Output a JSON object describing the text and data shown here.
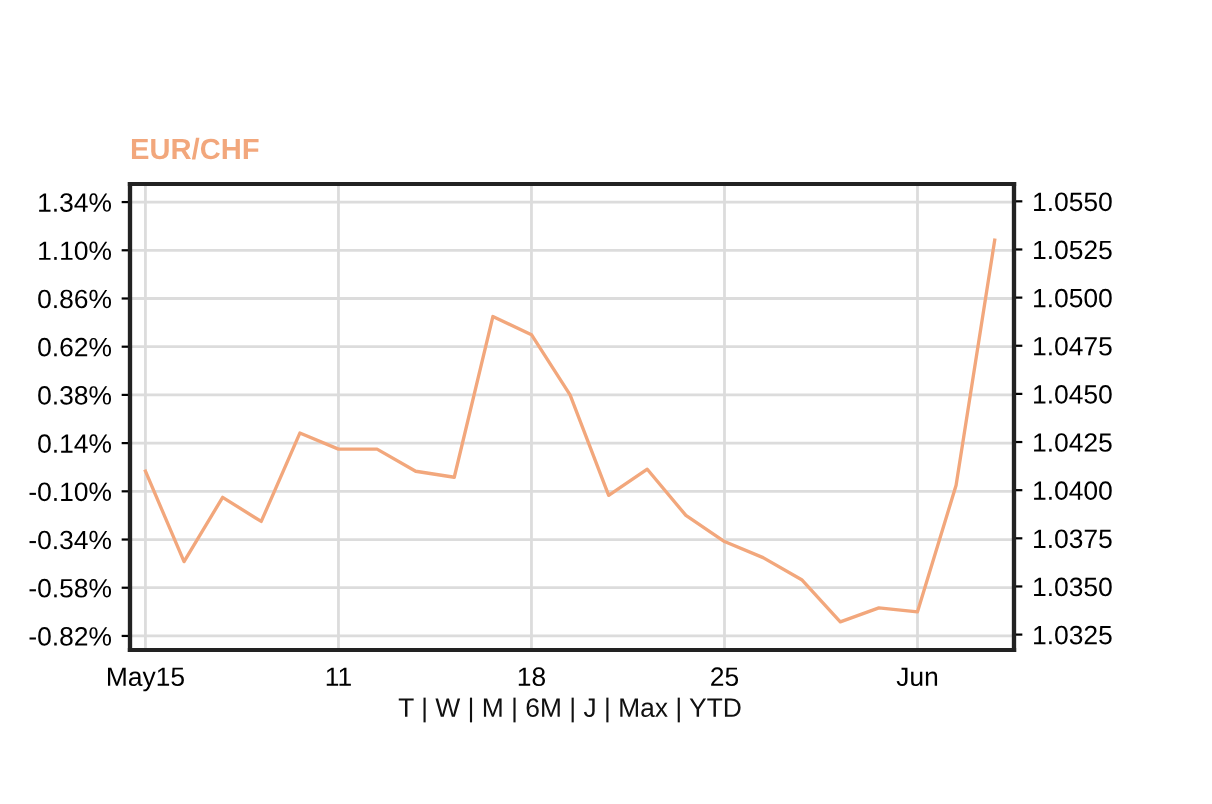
{
  "chart_data": {
    "type": "line",
    "title": "EUR/CHF",
    "categories": [
      "May15",
      null,
      null,
      null,
      null,
      "11",
      null,
      null,
      null,
      null,
      "18",
      null,
      null,
      null,
      null,
      "25",
      null,
      null,
      null,
      null,
      "Jun",
      null,
      null
    ],
    "series": [
      {
        "color": "#f2a77c",
        "values": [
          0.0,
          -0.45,
          -0.13,
          -0.25,
          0.19,
          0.11,
          0.11,
          0.0,
          -0.03,
          0.77,
          0.68,
          0.38,
          -0.12,
          0.01,
          -0.22,
          -0.35,
          -0.43,
          -0.54,
          -0.75,
          -0.68,
          -0.7,
          -0.07,
          1.15
        ]
      }
    ],
    "ylim": [
      -0.89,
      1.43
    ],
    "yticks": [
      {
        "value": 1.34,
        "label": "1.34%"
      },
      {
        "value": 1.1,
        "label": "1.10%"
      },
      {
        "value": 0.86,
        "label": "0.86%"
      },
      {
        "value": 0.62,
        "label": "0.62%"
      },
      {
        "value": 0.38,
        "label": "0.38%"
      },
      {
        "value": 0.14,
        "label": "0.14%"
      },
      {
        "value": -0.1,
        "label": "-0.10%"
      },
      {
        "value": -0.34,
        "label": "-0.34%"
      },
      {
        "value": -0.58,
        "label": "-0.58%"
      },
      {
        "value": -0.82,
        "label": "-0.82%"
      }
    ],
    "y2lim": [
      1.0317,
      1.0559
    ],
    "y2ticks": [
      {
        "value": 1.055,
        "label": "1.0550"
      },
      {
        "value": 1.0525,
        "label": "1.0525"
      },
      {
        "value": 1.05,
        "label": "1.0500"
      },
      {
        "value": 1.0475,
        "label": "1.0475"
      },
      {
        "value": 1.045,
        "label": "1.0450"
      },
      {
        "value": 1.0425,
        "label": "1.0425"
      },
      {
        "value": 1.04,
        "label": "1.0400"
      },
      {
        "value": 1.0375,
        "label": "1.0375"
      },
      {
        "value": 1.035,
        "label": "1.0350"
      },
      {
        "value": 1.0325,
        "label": "1.0325"
      }
    ],
    "annotations": [
      "T | W | M | 6M | J | Max | YTD"
    ],
    "grid": true,
    "line_style": "solid"
  }
}
